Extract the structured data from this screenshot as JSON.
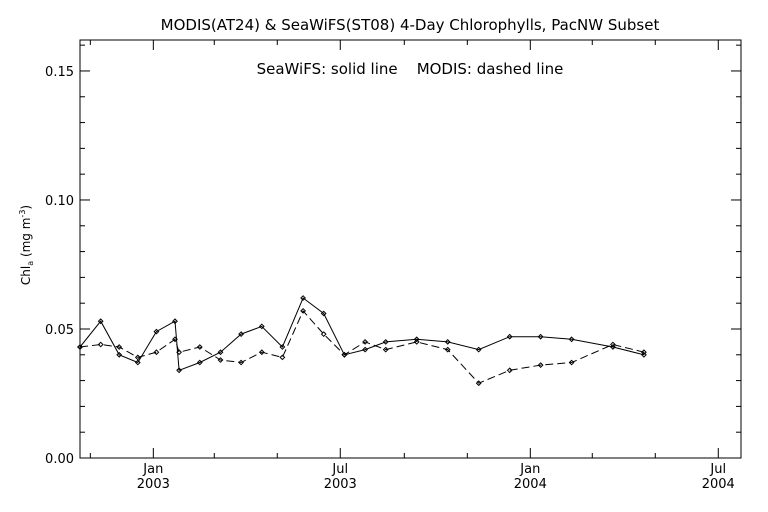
{
  "chart_data": {
    "type": "line",
    "title": "MODIS(AT24) & SeaWiFS(ST08) 4-Day Chlorophylls, PacNW Subset",
    "subtitle": "SeaWiFS: solid line    MODIS: dashed line",
    "ylabel": "Chl_a (mg m^-3)",
    "ylabel_main": "Chl",
    "ylabel_sub": "a",
    "ylabel_units": " (mg m",
    "ylabel_exp": "-3",
    "ylabel_close": ")",
    "ylim": [
      0,
      0.162
    ],
    "yticks": [
      "0.00",
      "0.05",
      "0.10",
      "0.15"
    ],
    "ytick_values": [
      0,
      0.05,
      0.1,
      0.15
    ],
    "xlim": [
      "2002-10-22",
      "2004-07-23"
    ],
    "xticks": [
      {
        "date": "2003-01-01",
        "month": "Jan",
        "year": "2003"
      },
      {
        "date": "2003-07-01",
        "month": "Jul",
        "year": "2003"
      },
      {
        "date": "2004-01-01",
        "month": "Jan",
        "year": "2004"
      },
      {
        "date": "2004-07-01",
        "month": "Jul",
        "year": "2004"
      }
    ],
    "x_minor_ticks": [
      "2002-11-01",
      "2003-03-01",
      "2003-05-01",
      "2003-09-01",
      "2003-11-01",
      "2004-03-01",
      "2004-05-01"
    ],
    "series": [
      {
        "name": "SeaWiFS",
        "style": "solid",
        "color": "#000000",
        "points": [
          [
            "2002-10-22",
            0.043
          ],
          [
            "2002-11-11",
            0.053
          ],
          [
            "2002-11-29",
            0.04
          ],
          [
            "2002-12-17",
            0.037
          ],
          [
            "2003-01-04",
            0.049
          ],
          [
            "2003-01-22",
            0.053
          ],
          [
            "2003-01-26",
            0.034
          ],
          [
            "2003-02-15",
            0.037
          ],
          [
            "2003-03-07",
            0.041
          ],
          [
            "2003-03-27",
            0.048
          ],
          [
            "2003-04-16",
            0.051
          ],
          [
            "2003-05-06",
            0.043
          ],
          [
            "2003-05-26",
            0.062
          ],
          [
            "2003-06-15",
            0.056
          ],
          [
            "2003-07-05",
            0.04
          ],
          [
            "2003-07-25",
            0.042
          ],
          [
            "2003-08-14",
            0.045
          ],
          [
            "2003-09-13",
            0.046
          ],
          [
            "2003-10-13",
            0.045
          ],
          [
            "2003-11-12",
            0.042
          ],
          [
            "2003-12-12",
            0.047
          ],
          [
            "2004-01-11",
            0.047
          ],
          [
            "2004-02-10",
            0.046
          ],
          [
            "2004-03-21",
            0.043
          ],
          [
            "2004-04-20",
            0.04
          ]
        ]
      },
      {
        "name": "MODIS",
        "style": "dashed",
        "color": "#000000",
        "points": [
          [
            "2002-10-22",
            0.043
          ],
          [
            "2002-11-11",
            0.044
          ],
          [
            "2002-11-29",
            0.043
          ],
          [
            "2002-12-17",
            0.039
          ],
          [
            "2003-01-04",
            0.041
          ],
          [
            "2003-01-22",
            0.046
          ],
          [
            "2003-01-26",
            0.041
          ],
          [
            "2003-02-15",
            0.043
          ],
          [
            "2003-03-07",
            0.038
          ],
          [
            "2003-03-27",
            0.037
          ],
          [
            "2003-04-16",
            0.041
          ],
          [
            "2003-05-06",
            0.039
          ],
          [
            "2003-05-26",
            0.057
          ],
          [
            "2003-06-15",
            0.048
          ],
          [
            "2003-07-05",
            0.04
          ],
          [
            "2003-07-25",
            0.045
          ],
          [
            "2003-08-14",
            0.042
          ],
          [
            "2003-09-13",
            0.045
          ],
          [
            "2003-10-13",
            0.042
          ],
          [
            "2003-11-12",
            0.029
          ],
          [
            "2003-12-12",
            0.034
          ],
          [
            "2004-01-11",
            0.036
          ],
          [
            "2004-02-10",
            0.037
          ],
          [
            "2004-03-21",
            0.044
          ],
          [
            "2004-04-20",
            0.041
          ]
        ]
      }
    ],
    "grid": false,
    "legend": "none"
  }
}
